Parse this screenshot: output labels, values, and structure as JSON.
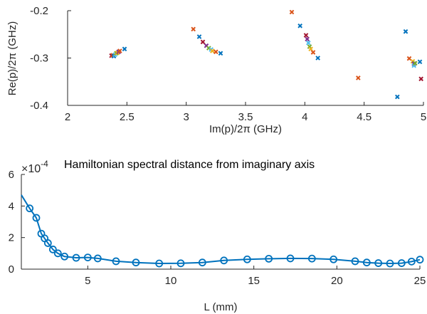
{
  "chart_data": [
    {
      "type": "scatter",
      "title": "",
      "xlabel": "Im(p)/2π (GHz)",
      "ylabel": "Re(p)/2π (GHz)",
      "xlim": [
        2,
        5
      ],
      "ylim": [
        -0.4,
        -0.2
      ],
      "xticks": [
        "2",
        "2.5",
        "3",
        "3.5",
        "4",
        "4.5",
        "5"
      ],
      "yticks": [
        "-0.2",
        "-0.3",
        "-0.4"
      ],
      "grid": false,
      "marker": "x",
      "colors": [
        "#0072BD",
        "#D95319",
        "#EDB120",
        "#7E2F8E",
        "#77AC30",
        "#4DBEEE",
        "#A2142F"
      ],
      "points": [
        {
          "x": 2.37,
          "y": -0.295,
          "c": 6
        },
        {
          "x": 2.38,
          "y": -0.294,
          "c": 1
        },
        {
          "x": 2.39,
          "y": -0.296,
          "c": 0
        },
        {
          "x": 2.4,
          "y": -0.293,
          "c": 5
        },
        {
          "x": 2.41,
          "y": -0.29,
          "c": 4
        },
        {
          "x": 2.42,
          "y": -0.289,
          "c": 2
        },
        {
          "x": 2.43,
          "y": -0.287,
          "c": 3
        },
        {
          "x": 2.44,
          "y": -0.285,
          "c": 1
        },
        {
          "x": 2.48,
          "y": -0.281,
          "c": 0
        },
        {
          "x": 3.06,
          "y": -0.239,
          "c": 1
        },
        {
          "x": 3.11,
          "y": -0.255,
          "c": 0
        },
        {
          "x": 3.14,
          "y": -0.266,
          "c": 6
        },
        {
          "x": 3.17,
          "y": -0.274,
          "c": 3
        },
        {
          "x": 3.19,
          "y": -0.279,
          "c": 4
        },
        {
          "x": 3.21,
          "y": -0.282,
          "c": 5
        },
        {
          "x": 3.22,
          "y": -0.285,
          "c": 2
        },
        {
          "x": 3.25,
          "y": -0.287,
          "c": 1
        },
        {
          "x": 3.29,
          "y": -0.29,
          "c": 0
        },
        {
          "x": 3.89,
          "y": -0.203,
          "c": 1
        },
        {
          "x": 3.96,
          "y": -0.232,
          "c": 0
        },
        {
          "x": 4.01,
          "y": -0.252,
          "c": 6
        },
        {
          "x": 4.02,
          "y": -0.26,
          "c": 3
        },
        {
          "x": 4.03,
          "y": -0.268,
          "c": 5
        },
        {
          "x": 4.04,
          "y": -0.276,
          "c": 4
        },
        {
          "x": 4.05,
          "y": -0.281,
          "c": 2
        },
        {
          "x": 4.07,
          "y": -0.288,
          "c": 1
        },
        {
          "x": 4.11,
          "y": -0.3,
          "c": 0
        },
        {
          "x": 4.45,
          "y": -0.342,
          "c": 1
        },
        {
          "x": 4.78,
          "y": -0.382,
          "c": 0
        },
        {
          "x": 4.85,
          "y": -0.244,
          "c": 0
        },
        {
          "x": 4.88,
          "y": -0.301,
          "c": 1
        },
        {
          "x": 4.91,
          "y": -0.307,
          "c": 2
        },
        {
          "x": 4.92,
          "y": -0.312,
          "c": 3
        },
        {
          "x": 4.92,
          "y": -0.316,
          "c": 5
        },
        {
          "x": 4.93,
          "y": -0.311,
          "c": 4
        },
        {
          "x": 4.97,
          "y": -0.308,
          "c": 0
        },
        {
          "x": 4.98,
          "y": -0.344,
          "c": 6
        }
      ]
    },
    {
      "type": "line",
      "title": "Hamiltonian spectral distance from imaginary axis",
      "xlabel": "L (mm)",
      "ylabel": "",
      "y_multiplier": "×10",
      "y_multiplier_exp": "-4",
      "xlim": [
        1,
        25
      ],
      "ylim": [
        0,
        6
      ],
      "xticks": [
        "5",
        "10",
        "15",
        "20",
        "25"
      ],
      "yticks": [
        "0",
        "2",
        "4",
        "6"
      ],
      "grid": false,
      "color": "#0072BD",
      "marker": "o",
      "series": [
        {
          "x": [
            1.5,
            1.9,
            2.2,
            2.4,
            2.6,
            2.9,
            3.2,
            3.6,
            4.3,
            5.0,
            5.6,
            6.7,
            7.9,
            9.3,
            10.6,
            11.9,
            13.2,
            14.6,
            15.9,
            17.2,
            18.5,
            19.8,
            21.1,
            21.8,
            22.5,
            23.2,
            23.9,
            24.5,
            25.0
          ],
          "y": [
            3.85,
            3.25,
            2.25,
            1.95,
            1.65,
            1.25,
            1.0,
            0.8,
            0.72,
            0.74,
            0.68,
            0.5,
            0.42,
            0.36,
            0.37,
            0.42,
            0.55,
            0.62,
            0.66,
            0.68,
            0.67,
            0.62,
            0.5,
            0.42,
            0.38,
            0.36,
            0.38,
            0.48,
            0.6
          ]
        }
      ]
    }
  ]
}
